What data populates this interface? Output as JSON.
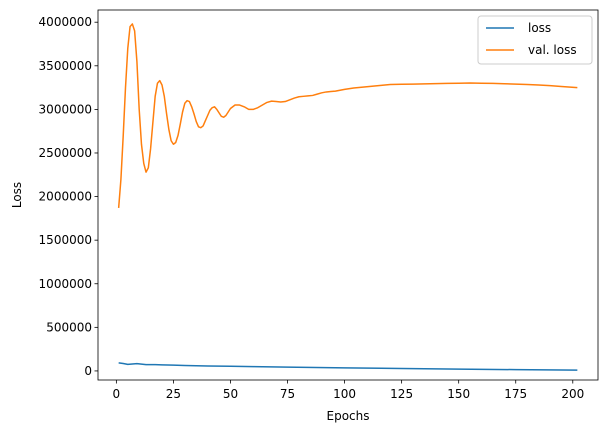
{
  "chart_data": {
    "type": "line",
    "title": "",
    "xlabel": "Epochs",
    "ylabel": "Loss",
    "xlim": [
      -8.05,
      211.05
    ],
    "ylim": [
      -104000,
      4140000
    ],
    "x_ticks": [
      0,
      25,
      50,
      75,
      100,
      125,
      150,
      175,
      200
    ],
    "x_tick_labels": [
      "0",
      "25",
      "50",
      "75",
      "100",
      "125",
      "150",
      "175",
      "200"
    ],
    "y_ticks": [
      0,
      500000,
      1000000,
      1500000,
      2000000,
      2500000,
      3000000,
      3500000,
      4000000
    ],
    "y_tick_labels": [
      "0",
      "500000",
      "1000000",
      "1500000",
      "2000000",
      "2500000",
      "3000000",
      "3500000",
      "4000000"
    ],
    "grid": false,
    "legend_position": "top-right",
    "series": [
      {
        "name": "loss",
        "color": "#1f77b4",
        "x": [
          1,
          3,
          5,
          7,
          9,
          11,
          13,
          15,
          17,
          20,
          25,
          30,
          40,
          50,
          60,
          75,
          100,
          125,
          150,
          175,
          202
        ],
        "y": [
          92000,
          85000,
          75000,
          80000,
          84000,
          78000,
          72000,
          73000,
          72000,
          70000,
          66000,
          62000,
          57000,
          53000,
          49000,
          43000,
          35000,
          28000,
          21000,
          15000,
          9000
        ]
      },
      {
        "name": "val. loss",
        "color": "#ff7f0e",
        "x": [
          1,
          2,
          3,
          4,
          5,
          6,
          7,
          8,
          9,
          10,
          11,
          12,
          13,
          14,
          15,
          16,
          17,
          18,
          19,
          20,
          21,
          22,
          23,
          24,
          25,
          26,
          27,
          28,
          29,
          30,
          31,
          32,
          33,
          34,
          35,
          36,
          37,
          38,
          39,
          40,
          41,
          42,
          43,
          44,
          45,
          46,
          47,
          48,
          49,
          50,
          52,
          54,
          56,
          58,
          60,
          62,
          64,
          66,
          68,
          70,
          72,
          74,
          76,
          78,
          80,
          82,
          84,
          86,
          88,
          90,
          92,
          94,
          96,
          98,
          100,
          104,
          108,
          112,
          116,
          120,
          125,
          130,
          135,
          140,
          145,
          150,
          155,
          160,
          165,
          170,
          175,
          180,
          185,
          190,
          195,
          202
        ],
        "y": [
          1870000,
          2200000,
          2700000,
          3250000,
          3700000,
          3950000,
          3980000,
          3900000,
          3550000,
          3000000,
          2600000,
          2380000,
          2280000,
          2330000,
          2550000,
          2850000,
          3150000,
          3300000,
          3330000,
          3280000,
          3150000,
          2950000,
          2770000,
          2640000,
          2600000,
          2620000,
          2700000,
          2830000,
          2970000,
          3070000,
          3100000,
          3090000,
          3030000,
          2950000,
          2860000,
          2800000,
          2790000,
          2810000,
          2870000,
          2930000,
          2990000,
          3020000,
          3030000,
          3000000,
          2960000,
          2920000,
          2910000,
          2930000,
          2970000,
          3010000,
          3050000,
          3050000,
          3030000,
          3000000,
          3000000,
          3020000,
          3050000,
          3080000,
          3095000,
          3090000,
          3085000,
          3090000,
          3110000,
          3130000,
          3145000,
          3150000,
          3155000,
          3160000,
          3175000,
          3190000,
          3200000,
          3205000,
          3210000,
          3220000,
          3230000,
          3245000,
          3255000,
          3265000,
          3275000,
          3285000,
          3288000,
          3290000,
          3292000,
          3295000,
          3298000,
          3300000,
          3302000,
          3300000,
          3298000,
          3294000,
          3290000,
          3286000,
          3280000,
          3272000,
          3262000,
          3250000
        ]
      }
    ]
  }
}
